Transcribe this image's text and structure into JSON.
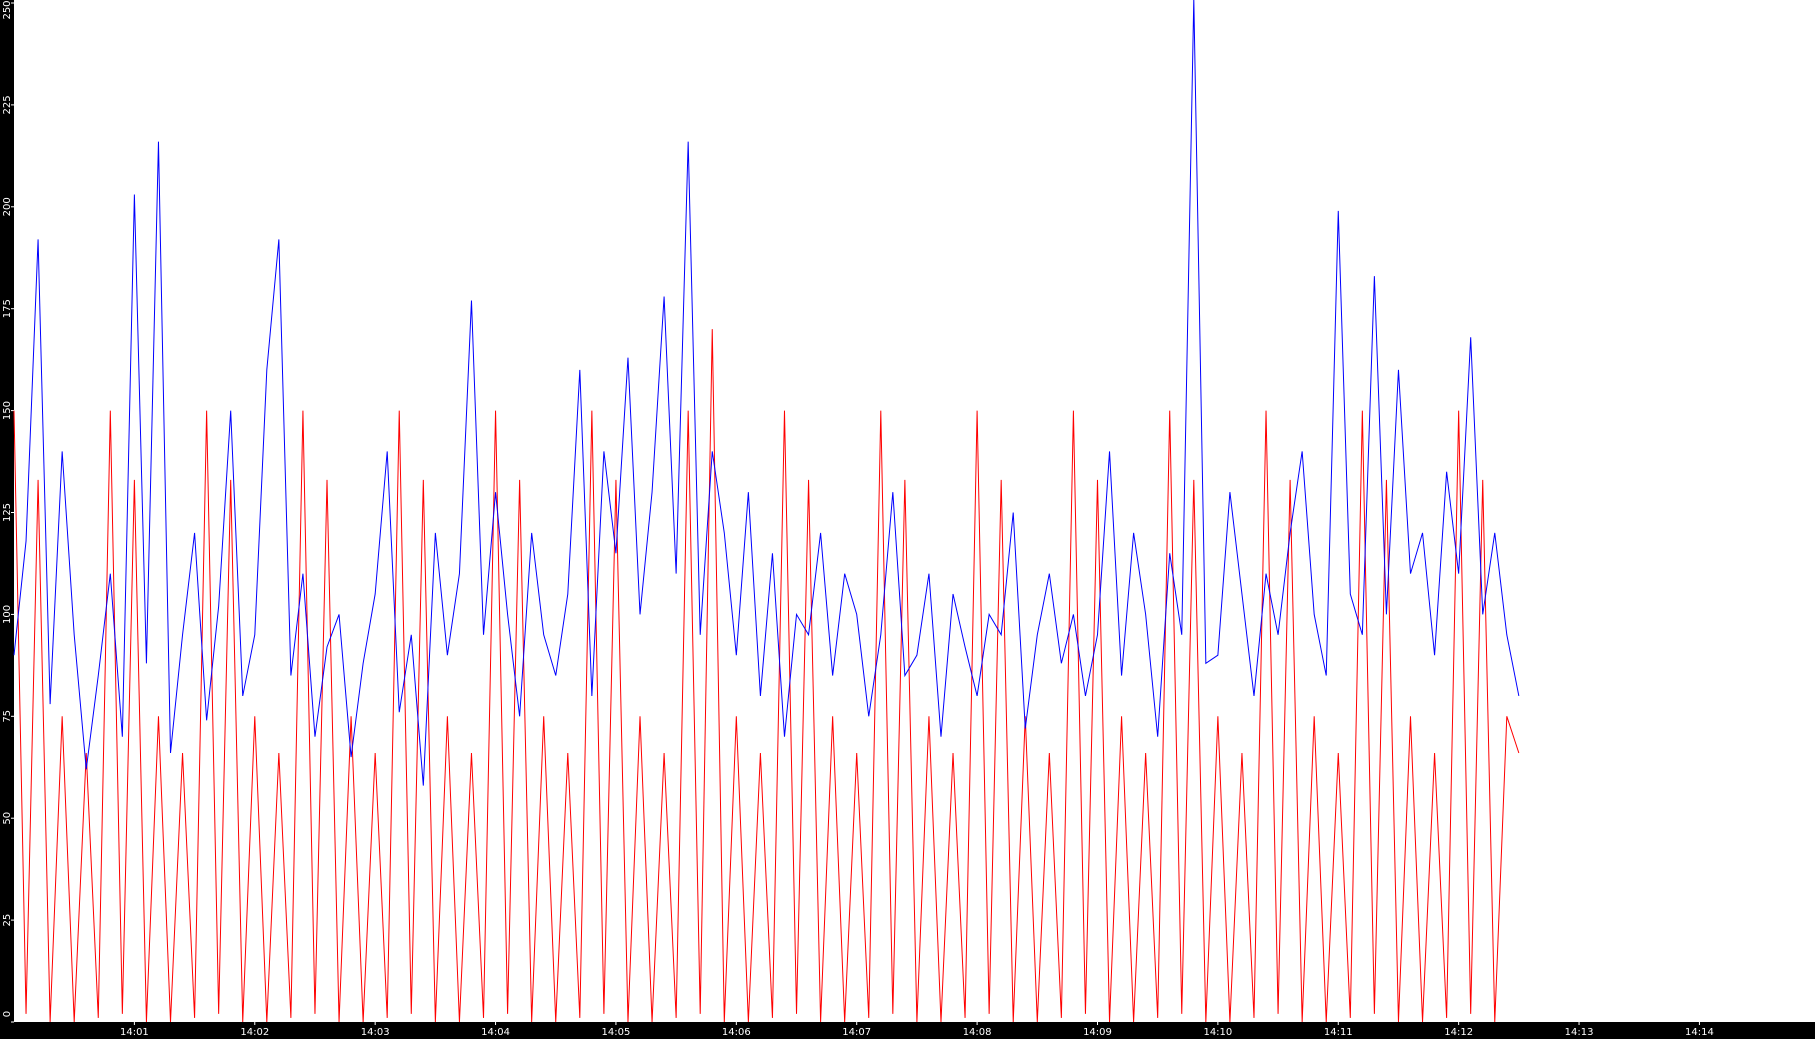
{
  "chart_data": {
    "type": "line",
    "x": [
      0,
      0.1,
      0.2,
      0.3,
      0.4,
      0.5,
      0.6,
      0.7,
      0.8,
      0.9,
      1,
      1.1,
      1.2,
      1.3,
      1.4,
      1.5,
      1.6,
      1.7,
      1.8,
      1.9,
      2,
      2.1,
      2.2,
      2.3,
      2.4,
      2.5,
      2.6,
      2.7,
      2.8,
      2.9,
      3,
      3.1,
      3.2,
      3.3,
      3.4,
      3.5,
      3.6,
      3.7,
      3.8,
      3.9,
      4,
      4.1,
      4.2,
      4.3,
      4.4,
      4.5,
      4.6,
      4.7,
      4.8,
      4.9,
      5,
      5.1,
      5.2,
      5.3,
      5.4,
      5.5,
      5.6,
      5.7,
      5.8,
      5.9,
      6,
      6.1,
      6.2,
      6.3,
      6.4,
      6.5,
      6.6,
      6.7,
      6.8,
      6.9,
      7,
      7.1,
      7.2,
      7.3,
      7.4,
      7.5,
      7.6,
      7.7,
      7.8,
      7.9,
      8,
      8.1,
      8.2,
      8.3,
      8.4,
      8.5,
      8.6,
      8.7,
      8.8,
      8.9,
      9,
      9.1,
      9.2,
      9.3,
      9.4,
      9.5,
      9.6,
      9.7,
      9.8,
      9.9,
      10,
      10.1,
      10.2,
      10.3,
      10.4,
      10.5,
      10.6,
      10.7,
      10.8,
      10.9,
      11,
      11.1,
      11.2,
      11.3,
      11.4,
      11.5,
      11.6,
      11.7,
      11.8,
      11.9,
      12,
      12.1,
      12.2,
      12.3,
      12.4,
      12.5
    ],
    "series": [
      {
        "color": "#ff0000",
        "values": [
          150,
          2,
          133,
          0,
          75,
          0,
          66,
          1,
          150,
          2,
          133,
          0,
          75,
          0,
          66,
          1,
          150,
          2,
          133,
          0,
          75,
          0,
          66,
          1,
          150,
          2,
          133,
          0,
          75,
          0,
          66,
          1,
          150,
          2,
          133,
          0,
          75,
          0,
          66,
          1,
          150,
          2,
          133,
          0,
          75,
          0,
          66,
          1,
          150,
          2,
          133,
          0,
          75,
          0,
          66,
          1,
          150,
          2,
          170,
          0,
          75,
          0,
          66,
          1,
          150,
          2,
          133,
          0,
          75,
          0,
          66,
          1,
          150,
          2,
          133,
          0,
          75,
          0,
          66,
          1,
          150,
          2,
          133,
          0,
          75,
          0,
          66,
          1,
          150,
          2,
          133,
          0,
          75,
          0,
          66,
          1,
          150,
          2,
          133,
          0,
          75,
          0,
          66,
          1,
          150,
          2,
          133,
          0,
          75,
          0,
          66,
          1,
          150,
          2,
          133,
          0,
          75,
          0,
          66,
          1,
          150,
          2,
          133,
          0,
          75,
          66
        ]
      },
      {
        "color": "#0000ff",
        "values": [
          90,
          118,
          192,
          78,
          140,
          95,
          62,
          85,
          110,
          70,
          203,
          88,
          216,
          66,
          95,
          120,
          74,
          102,
          150,
          80,
          95,
          160,
          192,
          85,
          110,
          70,
          92,
          100,
          65,
          88,
          105,
          140,
          76,
          95,
          58,
          120,
          90,
          110,
          177,
          95,
          130,
          100,
          75,
          120,
          95,
          85,
          105,
          160,
          80,
          140,
          115,
          163,
          100,
          130,
          178,
          110,
          216,
          95,
          140,
          120,
          90,
          130,
          80,
          115,
          70,
          100,
          95,
          120,
          85,
          110,
          100,
          75,
          95,
          130,
          85,
          90,
          110,
          70,
          105,
          92,
          80,
          100,
          95,
          125,
          72,
          95,
          110,
          88,
          100,
          80,
          95,
          140,
          85,
          120,
          100,
          70,
          115,
          95,
          251,
          88,
          90,
          130,
          105,
          80,
          110,
          95,
          120,
          140,
          100,
          85,
          199,
          105,
          95,
          183,
          100,
          160,
          110,
          120,
          90,
          135,
          110,
          168,
          100,
          120,
          95,
          80
        ]
      }
    ],
    "xlim": [
      0,
      14.96
    ],
    "xticks": [
      {
        "value": 1,
        "label": "14:01"
      },
      {
        "value": 2,
        "label": "14:02"
      },
      {
        "value": 3,
        "label": "14:03"
      },
      {
        "value": 4,
        "label": "14:04"
      },
      {
        "value": 5,
        "label": "14:05"
      },
      {
        "value": 6,
        "label": "14:06"
      },
      {
        "value": 7,
        "label": "14:07"
      },
      {
        "value": 8,
        "label": "14:08"
      },
      {
        "value": 9,
        "label": "14:09"
      },
      {
        "value": 10,
        "label": "14:10"
      },
      {
        "value": 11,
        "label": "14:11"
      },
      {
        "value": 12,
        "label": "14:12"
      },
      {
        "value": 13,
        "label": "14:13"
      },
      {
        "value": 14,
        "label": "14:14"
      }
    ],
    "ylim": [
      0,
      250
    ],
    "yticks": [
      0,
      25,
      50,
      75,
      100,
      125,
      150,
      175,
      200,
      225,
      250
    ]
  }
}
